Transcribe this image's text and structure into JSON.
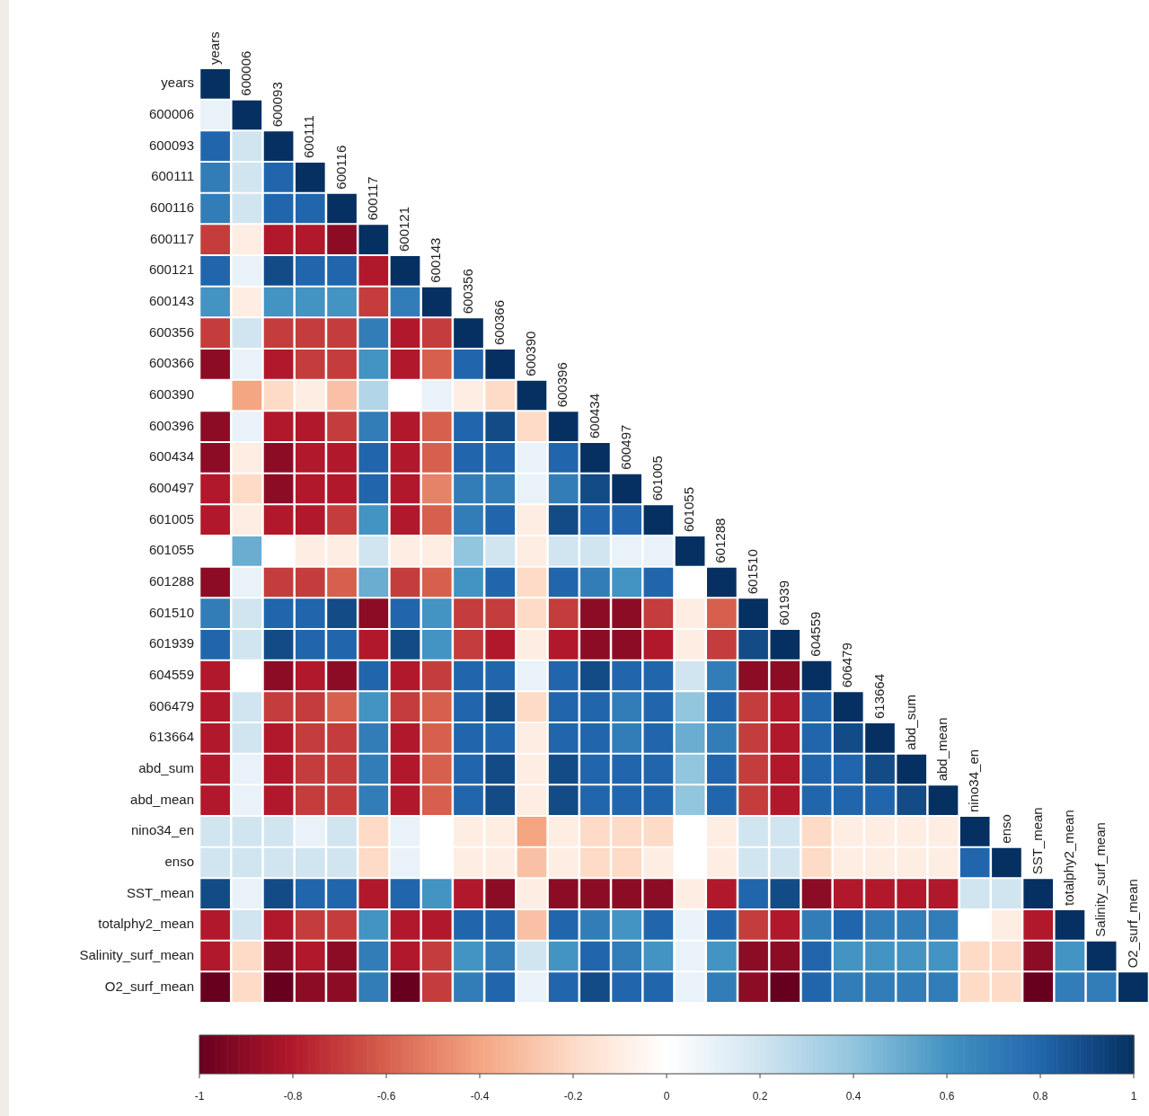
{
  "chart_data": {
    "type": "heatmap",
    "categories": [
      "years",
      "600006",
      "600093",
      "600111",
      "600116",
      "600117",
      "600121",
      "600143",
      "600356",
      "600366",
      "600390",
      "600396",
      "600434",
      "600497",
      "601005",
      "601055",
      "601288",
      "601510",
      "601939",
      "604559",
      "606479",
      "613664",
      "abd_sum",
      "abd_mean",
      "nino34_en",
      "enso",
      "SST_mean",
      "totalphy2_mean",
      "Salinity_surf_mean",
      "O2_surf_mean"
    ],
    "y_categories": [
      "years",
      "600006",
      "600093",
      "600111",
      "600116",
      "600117",
      "600121",
      "600143",
      "600356",
      "600366",
      "600390",
      "600396",
      "600434",
      "600497",
      "601005",
      "601055",
      "601288",
      "601510",
      "601939",
      "604559",
      "606479",
      "613664",
      "abd_sum",
      "abd_mean",
      "nino34_en",
      "enso",
      "SST_mean",
      "totalphy2_mean",
      "Salinity_surf_mean",
      "O2_surf_mean"
    ],
    "cells": [
      [
        1,
        null,
        null,
        null,
        null,
        null,
        null,
        null,
        null,
        null,
        null,
        null,
        null,
        null,
        null,
        null,
        null,
        null,
        null,
        null,
        null,
        null,
        null,
        null,
        null,
        null,
        null,
        null,
        null,
        null
      ],
      [
        0.1,
        1,
        null,
        null,
        null,
        null,
        null,
        null,
        null,
        null,
        null,
        null,
        null,
        null,
        null,
        null,
        null,
        null,
        null,
        null,
        null,
        null,
        null,
        null,
        null,
        null,
        null,
        null,
        null,
        null
      ],
      [
        0.8,
        0.2,
        1,
        null,
        null,
        null,
        null,
        null,
        null,
        null,
        null,
        null,
        null,
        null,
        null,
        null,
        null,
        null,
        null,
        null,
        null,
        null,
        null,
        null,
        null,
        null,
        null,
        null,
        null,
        null
      ],
      [
        0.7,
        0.2,
        0.8,
        1,
        null,
        null,
        null,
        null,
        null,
        null,
        null,
        null,
        null,
        null,
        null,
        null,
        null,
        null,
        null,
        null,
        null,
        null,
        null,
        null,
        null,
        null,
        null,
        null,
        null,
        null
      ],
      [
        0.7,
        0.2,
        0.8,
        0.8,
        1,
        null,
        null,
        null,
        null,
        null,
        null,
        null,
        null,
        null,
        null,
        null,
        null,
        null,
        null,
        null,
        null,
        null,
        null,
        null,
        null,
        null,
        null,
        null,
        null,
        null
      ],
      [
        -0.7,
        -0.1,
        -0.8,
        -0.8,
        -0.9,
        1,
        null,
        null,
        null,
        null,
        null,
        null,
        null,
        null,
        null,
        null,
        null,
        null,
        null,
        null,
        null,
        null,
        null,
        null,
        null,
        null,
        null,
        null,
        null,
        null
      ],
      [
        0.8,
        0.1,
        0.9,
        0.8,
        0.8,
        -0.8,
        1,
        null,
        null,
        null,
        null,
        null,
        null,
        null,
        null,
        null,
        null,
        null,
        null,
        null,
        null,
        null,
        null,
        null,
        null,
        null,
        null,
        null,
        null,
        null
      ],
      [
        0.6,
        -0.1,
        0.6,
        0.6,
        0.6,
        -0.7,
        0.7,
        1,
        null,
        null,
        null,
        null,
        null,
        null,
        null,
        null,
        null,
        null,
        null,
        null,
        null,
        null,
        null,
        null,
        null,
        null,
        null,
        null,
        null,
        null
      ],
      [
        -0.7,
        0.2,
        -0.7,
        -0.7,
        -0.7,
        0.7,
        -0.8,
        -0.7,
        1,
        null,
        null,
        null,
        null,
        null,
        null,
        null,
        null,
        null,
        null,
        null,
        null,
        null,
        null,
        null,
        null,
        null,
        null,
        null,
        null,
        null
      ],
      [
        -0.9,
        0.1,
        -0.8,
        -0.7,
        -0.7,
        0.6,
        -0.8,
        -0.6,
        0.8,
        1,
        null,
        null,
        null,
        null,
        null,
        null,
        null,
        null,
        null,
        null,
        null,
        null,
        null,
        null,
        null,
        null,
        null,
        null,
        null,
        null
      ],
      [
        0,
        -0.4,
        -0.2,
        -0.1,
        -0.3,
        0.3,
        0,
        0.1,
        -0.1,
        -0.2,
        1,
        null,
        null,
        null,
        null,
        null,
        null,
        null,
        null,
        null,
        null,
        null,
        null,
        null,
        null,
        null,
        null,
        null,
        null,
        null
      ],
      [
        -0.9,
        0.1,
        -0.8,
        -0.8,
        -0.7,
        0.7,
        -0.8,
        -0.6,
        0.8,
        0.9,
        -0.2,
        1,
        null,
        null,
        null,
        null,
        null,
        null,
        null,
        null,
        null,
        null,
        null,
        null,
        null,
        null,
        null,
        null,
        null,
        null
      ],
      [
        -0.9,
        -0.1,
        -0.9,
        -0.8,
        -0.8,
        0.8,
        -0.8,
        -0.6,
        0.8,
        0.8,
        0.1,
        0.8,
        1,
        null,
        null,
        null,
        null,
        null,
        null,
        null,
        null,
        null,
        null,
        null,
        null,
        null,
        null,
        null,
        null,
        null
      ],
      [
        -0.8,
        -0.2,
        -0.9,
        -0.8,
        -0.8,
        0.8,
        -0.8,
        -0.5,
        0.7,
        0.7,
        0.1,
        0.7,
        0.9,
        1,
        null,
        null,
        null,
        null,
        null,
        null,
        null,
        null,
        null,
        null,
        null,
        null,
        null,
        null,
        null,
        null
      ],
      [
        -0.8,
        -0.1,
        -0.8,
        -0.8,
        -0.7,
        0.6,
        -0.8,
        -0.6,
        0.7,
        0.8,
        -0.1,
        0.9,
        0.8,
        0.8,
        1,
        null,
        null,
        null,
        null,
        null,
        null,
        null,
        null,
        null,
        null,
        null,
        null,
        null,
        null,
        null
      ],
      [
        0,
        0.5,
        0,
        -0.1,
        -0.1,
        0.2,
        -0.1,
        -0.1,
        0.4,
        0.2,
        -0.1,
        0.2,
        0.2,
        0.1,
        0.1,
        1,
        null,
        null,
        null,
        null,
        null,
        null,
        null,
        null,
        null,
        null,
        null,
        null,
        null,
        null
      ],
      [
        -0.9,
        0.1,
        -0.7,
        -0.7,
        -0.6,
        0.5,
        -0.7,
        -0.6,
        0.6,
        0.8,
        -0.2,
        0.8,
        0.7,
        0.6,
        0.8,
        0,
        1,
        null,
        null,
        null,
        null,
        null,
        null,
        null,
        null,
        null,
        null,
        null,
        null,
        null
      ],
      [
        0.7,
        0.2,
        0.8,
        0.8,
        0.9,
        -0.9,
        0.8,
        0.6,
        -0.7,
        -0.7,
        -0.2,
        -0.7,
        -0.9,
        -0.9,
        -0.7,
        -0.1,
        -0.6,
        1,
        null,
        null,
        null,
        null,
        null,
        null,
        null,
        null,
        null,
        null,
        null,
        null
      ],
      [
        0.8,
        0.2,
        0.9,
        0.8,
        0.8,
        -0.8,
        0.9,
        0.6,
        -0.7,
        -0.8,
        -0.1,
        -0.8,
        -0.9,
        -0.9,
        -0.8,
        -0.1,
        -0.7,
        0.9,
        1,
        null,
        null,
        null,
        null,
        null,
        null,
        null,
        null,
        null,
        null,
        null
      ],
      [
        -0.8,
        0,
        -0.9,
        -0.8,
        -0.9,
        0.8,
        -0.8,
        -0.7,
        0.8,
        0.8,
        0.1,
        0.8,
        0.9,
        0.8,
        0.8,
        0.2,
        0.7,
        -0.9,
        -0.9,
        1,
        null,
        null,
        null,
        null,
        null,
        null,
        null,
        null,
        null,
        null
      ],
      [
        -0.8,
        0.2,
        -0.7,
        -0.7,
        -0.6,
        0.6,
        -0.7,
        -0.6,
        0.8,
        0.9,
        -0.2,
        0.8,
        0.8,
        0.7,
        0.8,
        0.4,
        0.8,
        -0.7,
        -0.8,
        0.8,
        1,
        null,
        null,
        null,
        null,
        null,
        null,
        null,
        null,
        null
      ],
      [
        -0.8,
        0.2,
        -0.8,
        -0.7,
        -0.7,
        0.7,
        -0.8,
        -0.6,
        0.8,
        0.8,
        -0.1,
        0.8,
        0.8,
        0.7,
        0.8,
        0.5,
        0.7,
        -0.7,
        -0.8,
        0.8,
        0.9,
        1,
        null,
        null,
        null,
        null,
        null,
        null,
        null,
        null
      ],
      [
        -0.8,
        0.1,
        -0.8,
        -0.7,
        -0.7,
        0.7,
        -0.8,
        -0.6,
        0.8,
        0.9,
        -0.1,
        0.9,
        0.8,
        0.8,
        0.8,
        0.4,
        0.8,
        -0.7,
        -0.8,
        0.8,
        0.8,
        0.9,
        1,
        null,
        null,
        null,
        null,
        null,
        null,
        null
      ],
      [
        -0.8,
        0.1,
        -0.8,
        -0.7,
        -0.7,
        0.7,
        -0.8,
        -0.6,
        0.8,
        0.9,
        -0.1,
        0.9,
        0.8,
        0.8,
        0.8,
        0.4,
        0.8,
        -0.7,
        -0.8,
        0.8,
        0.8,
        0.8,
        0.9,
        1,
        null,
        null,
        null,
        null,
        null,
        null
      ],
      [
        0.2,
        0.2,
        0.2,
        0.1,
        0.2,
        -0.2,
        0.1,
        0,
        -0.1,
        -0.1,
        -0.4,
        -0.1,
        -0.2,
        -0.2,
        -0.2,
        0,
        -0.1,
        0.2,
        0.2,
        -0.2,
        -0.1,
        -0.1,
        -0.1,
        -0.1,
        1,
        null,
        null,
        null,
        null,
        null
      ],
      [
        0.2,
        0.2,
        0.2,
        0.2,
        0.2,
        -0.2,
        0.1,
        0,
        -0.1,
        -0.1,
        -0.3,
        -0.1,
        -0.2,
        -0.2,
        -0.1,
        0,
        -0.1,
        0.2,
        0.2,
        -0.2,
        -0.1,
        -0.1,
        -0.1,
        -0.1,
        0.8,
        1,
        null,
        null,
        null,
        null
      ],
      [
        0.9,
        0.1,
        0.9,
        0.8,
        0.8,
        -0.8,
        0.8,
        0.6,
        -0.8,
        -0.9,
        -0.1,
        -0.9,
        -0.9,
        -0.9,
        -0.9,
        -0.1,
        -0.8,
        0.8,
        0.9,
        -0.9,
        -0.8,
        -0.8,
        -0.8,
        -0.8,
        0.2,
        0.2,
        1,
        null,
        null,
        null
      ],
      [
        -0.8,
        0.2,
        -0.8,
        -0.7,
        -0.7,
        0.6,
        -0.8,
        -0.8,
        0.8,
        0.8,
        -0.3,
        0.8,
        0.7,
        0.6,
        0.8,
        0.1,
        0.8,
        -0.7,
        -0.8,
        0.7,
        0.8,
        0.7,
        0.7,
        0.7,
        0,
        -0.1,
        -0.8,
        1,
        null,
        null
      ],
      [
        -0.8,
        -0.2,
        -0.9,
        -0.8,
        -0.9,
        0.7,
        -0.8,
        -0.7,
        0.6,
        0.7,
        0.2,
        0.6,
        0.8,
        0.7,
        0.6,
        0.1,
        0.6,
        -0.9,
        -0.9,
        0.8,
        0.6,
        0.6,
        0.6,
        0.6,
        -0.2,
        -0.2,
        -0.9,
        0.6,
        1,
        null
      ],
      [
        -1,
        -0.2,
        -1,
        -0.9,
        -0.9,
        0.7,
        -1,
        -0.7,
        0.7,
        0.8,
        0.1,
        0.8,
        0.9,
        0.8,
        0.8,
        0.1,
        0.7,
        -0.9,
        -1,
        0.8,
        0.7,
        0.7,
        0.7,
        0.7,
        -0.2,
        -0.2,
        -1,
        0.7,
        0.7,
        1
      ]
    ],
    "clim": [
      -1,
      1
    ],
    "cticks": [
      -1,
      -0.8,
      -0.6,
      -0.4,
      -0.2,
      0,
      0.2,
      0.4,
      0.6,
      0.8,
      1
    ]
  }
}
